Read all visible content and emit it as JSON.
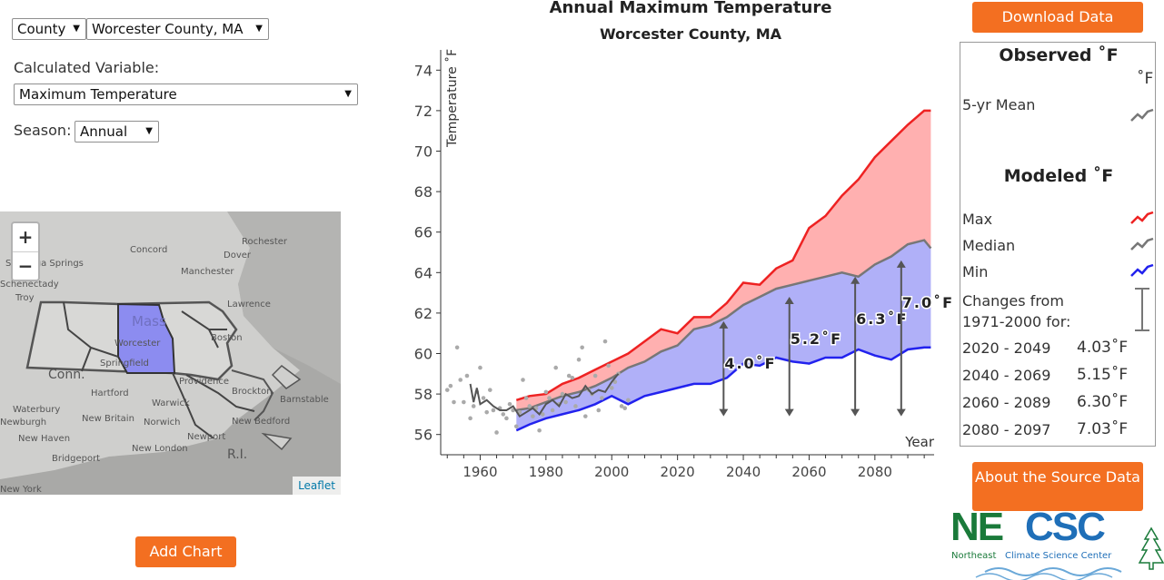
{
  "controls": {
    "geo_type": "County",
    "location": "Worcester County, MA",
    "variable_label": "Calculated Variable:",
    "variable": "Maximum Temperature",
    "season_label": "Season:",
    "season": "Annual",
    "add_chart": "Add Chart"
  },
  "map": {
    "zoom_in": "+",
    "zoom_out": "−",
    "attribution": "Leaflet",
    "highlight_color": "#8c8cf0",
    "labels": [
      "Rochester",
      "Concord",
      "Dover",
      "Saratoga Springs",
      "Manchester",
      "Schenectady",
      "Troy",
      "Lawrence",
      "Mass",
      "Boston",
      "Worcester",
      "Springfield",
      "Providence",
      "Conn.",
      "Hartford",
      "Warwick",
      "Brockton",
      "Waterbury",
      "New Britain",
      "Barnstable",
      "Newburgh",
      "Norwich",
      "New Bedford",
      "New Haven",
      "Newport",
      "New London",
      "Bridgeport",
      "R.I.",
      "New York"
    ]
  },
  "buttons": {
    "download": "Download Data",
    "about": "About the Source Data"
  },
  "legend": {
    "observed_title": "Observed ˚F",
    "unit": "˚F",
    "observed_mean": "5-yr Mean",
    "modeled_title": "Modeled ˚F",
    "max": "Max",
    "median": "Median",
    "min": "Min",
    "changes_title": "Changes from 1971-2000 for:",
    "changes": [
      {
        "period": "2020 - 2049",
        "value": "4.03˚F"
      },
      {
        "period": "2040 - 2069",
        "value": "5.15˚F"
      },
      {
        "period": "2060 - 2089",
        "value": "6.30˚F"
      },
      {
        "period": "2080 - 2097",
        "value": "7.03˚F"
      }
    ]
  },
  "logo": {
    "ne": "NE",
    "csc": "CSC",
    "sub1": "Northeast",
    "sub2": "Climate Science Center"
  },
  "colors": {
    "max": "#ee2222",
    "median": "#777777",
    "min": "#2222ee",
    "upper_fill": "#ffb0b0",
    "lower_fill": "#b0b0f8",
    "observed_points": "#aaaaaa",
    "observed_mean": "#555555",
    "button": "#f36f21",
    "logo_green": "#1a7a3a",
    "logo_blue": "#1f6fb8"
  },
  "chart_data": {
    "type": "area",
    "title": "Annual Maximum Temperature",
    "subtitle": "Worcester County, MA",
    "xlabel": "Year",
    "ylabel": "Temperature ˚F",
    "xlim": [
      1948,
      2098
    ],
    "ylim": [
      55,
      75
    ],
    "x_ticks": [
      1960,
      1980,
      2000,
      2020,
      2040,
      2060,
      2080
    ],
    "y_ticks": [
      56,
      58,
      60,
      62,
      64,
      66,
      68,
      70,
      72,
      74
    ],
    "modeled": {
      "x": [
        1971,
        1975,
        1980,
        1985,
        1990,
        1995,
        2000,
        2005,
        2010,
        2015,
        2020,
        2025,
        2030,
        2035,
        2040,
        2045,
        2050,
        2055,
        2060,
        2065,
        2070,
        2075,
        2080,
        2085,
        2090,
        2095,
        2097
      ],
      "max": [
        57.7,
        57.9,
        58.0,
        58.5,
        58.8,
        59.2,
        59.6,
        60.0,
        60.6,
        61.2,
        61.0,
        61.8,
        61.8,
        62.5,
        63.5,
        63.4,
        64.2,
        64.6,
        66.2,
        66.8,
        67.8,
        68.6,
        69.7,
        70.5,
        71.3,
        72.0,
        72.0
      ],
      "median": [
        57.2,
        57.3,
        57.6,
        57.9,
        58.1,
        58.4,
        58.8,
        59.3,
        59.6,
        60.1,
        60.4,
        61.2,
        61.4,
        61.8,
        62.4,
        62.8,
        63.2,
        63.4,
        63.6,
        63.8,
        64.0,
        63.8,
        64.4,
        64.8,
        65.4,
        65.6,
        65.2
      ],
      "min": [
        56.2,
        56.5,
        56.8,
        57.0,
        57.2,
        57.5,
        57.9,
        57.5,
        57.9,
        58.1,
        58.3,
        58.5,
        58.5,
        58.8,
        59.5,
        59.4,
        59.8,
        59.6,
        59.5,
        59.8,
        59.8,
        60.2,
        59.9,
        59.7,
        60.2,
        60.3,
        60.3
      ]
    },
    "observed_points": {
      "x": [
        1950,
        1951,
        1952,
        1953,
        1954,
        1955,
        1956,
        1957,
        1958,
        1959,
        1960,
        1961,
        1962,
        1963,
        1964,
        1965,
        1966,
        1967,
        1968,
        1969,
        1970,
        1971,
        1972,
        1973,
        1974,
        1975,
        1976,
        1977,
        1978,
        1979,
        1980,
        1981,
        1982,
        1983,
        1984,
        1985,
        1986,
        1987,
        1988,
        1989,
        1990,
        1991,
        1992,
        1993,
        1994,
        1995,
        1996,
        1997,
        1998,
        1999,
        2000,
        2001,
        2002,
        2003,
        2004,
        2005
      ],
      "y": [
        58.2,
        58.4,
        57.6,
        60.3,
        58.7,
        57.6,
        58.9,
        56.8,
        57.4,
        58.1,
        59.3,
        57.8,
        57.1,
        58.2,
        57.2,
        56.1,
        57.3,
        57.0,
        56.8,
        57.5,
        57.2,
        56.4,
        57.1,
        58.7,
        57.8,
        57.4,
        56.9,
        57.3,
        56.2,
        57.0,
        58.1,
        57.8,
        57.2,
        59.3,
        57.5,
        58.0,
        57.6,
        58.9,
        58.8,
        57.4,
        59.7,
        60.3,
        56.9,
        58.2,
        58.0,
        58.9,
        57.2,
        57.8,
        60.6,
        59.4,
        58.3,
        58.6,
        59.0,
        57.4,
        57.3,
        57.7
      ]
    },
    "observed_mean": {
      "x": [
        1957,
        1958,
        1959,
        1960,
        1962,
        1964,
        1966,
        1968,
        1970,
        1972,
        1974,
        1976,
        1978,
        1980,
        1982,
        1984,
        1986,
        1988,
        1990,
        1992,
        1994,
        1996,
        1998,
        2000,
        2002
      ],
      "y": [
        58.5,
        57.6,
        58.3,
        57.5,
        57.7,
        57.4,
        57.2,
        57.2,
        57.4,
        56.9,
        57.1,
        57.3,
        57.0,
        57.5,
        57.7,
        57.4,
        58.0,
        57.8,
        57.9,
        58.4,
        58.0,
        58.2,
        58.1,
        58.6,
        59.0
      ]
    },
    "change_annotations": [
      {
        "label": "4.0˚F",
        "x": 2034,
        "y_from": 56.9,
        "y_to": 61.6
      },
      {
        "label": "5.2˚F",
        "x": 2054,
        "y_from": 56.9,
        "y_to": 62.8
      },
      {
        "label": "6.3˚F",
        "x": 2074,
        "y_from": 56.9,
        "y_to": 63.8
      },
      {
        "label": "7.0˚F",
        "x": 2088,
        "y_from": 56.9,
        "y_to": 64.6
      }
    ]
  }
}
